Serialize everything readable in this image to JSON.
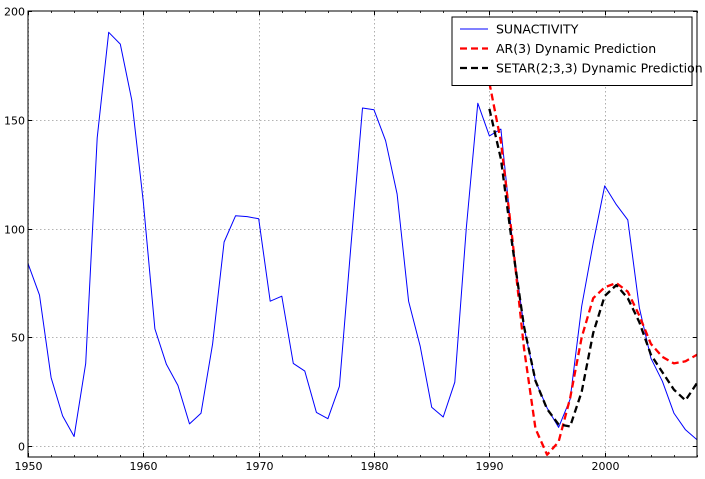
{
  "chart_data": {
    "type": "line",
    "title": "",
    "xlabel": "",
    "ylabel": "",
    "xlim": [
      1950,
      2008
    ],
    "ylim": [
      -5,
      200
    ],
    "x_ticks": [
      1950,
      1960,
      1970,
      1980,
      1990,
      2000
    ],
    "y_ticks": [
      0,
      50,
      100,
      150,
      200
    ],
    "grid": true,
    "legend_position": "top-right",
    "series": [
      {
        "name": "SUNACTIVITY",
        "color": "#0000ff",
        "style": "solid",
        "x": [
          1950,
          1951,
          1952,
          1953,
          1954,
          1955,
          1956,
          1957,
          1958,
          1959,
          1960,
          1961,
          1962,
          1963,
          1964,
          1965,
          1966,
          1967,
          1968,
          1969,
          1970,
          1971,
          1972,
          1973,
          1974,
          1975,
          1976,
          1977,
          1978,
          1979,
          1980,
          1981,
          1982,
          1983,
          1984,
          1985,
          1986,
          1987,
          1988,
          1989,
          1990,
          1991,
          1992,
          1993,
          1994,
          1995,
          1996,
          1997,
          1998,
          1999,
          2000,
          2001,
          2002,
          2003,
          2004,
          2005,
          2006,
          2007,
          2008
        ],
        "y": [
          83.9,
          69.4,
          31.5,
          13.9,
          4.4,
          38.0,
          141.7,
          190.2,
          184.8,
          159.0,
          112.3,
          53.9,
          37.6,
          27.9,
          10.2,
          15.1,
          47.0,
          93.8,
          105.9,
          105.5,
          104.5,
          66.6,
          68.9,
          38.0,
          34.5,
          15.5,
          12.6,
          27.5,
          92.5,
          155.4,
          154.6,
          140.4,
          115.9,
          66.6,
          45.9,
          17.9,
          13.4,
          29.4,
          100.2,
          157.6,
          142.6,
          145.7,
          94.3,
          54.6,
          29.9,
          17.5,
          8.6,
          21.5,
          64.3,
          93.3,
          119.6,
          111.0,
          104.0,
          63.7,
          40.4,
          29.8,
          15.2,
          7.5,
          2.9
        ]
      },
      {
        "name": "AR(3) Dynamic Prediction",
        "color": "#ff0000",
        "style": "dashed",
        "x": [
          1990,
          1991,
          1992,
          1993,
          1994,
          1995,
          1996,
          1997,
          1998,
          1999,
          2000,
          2001,
          2002,
          2003,
          2004,
          2005,
          2006,
          2007,
          2008
        ],
        "y": [
          167,
          140,
          95,
          45,
          8,
          -4,
          2,
          22,
          50,
          68,
          73,
          75,
          71,
          60,
          47,
          41,
          38,
          39,
          42
        ]
      },
      {
        "name": "SETAR(2;3,3) Dynamic Prediction",
        "color": "#000000",
        "style": "dashed",
        "x": [
          1990,
          1991,
          1992,
          1993,
          1994,
          1995,
          1996,
          1997,
          1998,
          1999,
          2000,
          2001,
          2002,
          2003,
          2004,
          2005,
          2006,
          2007,
          2008
        ],
        "y": [
          155,
          132,
          92,
          55,
          30,
          17,
          10,
          9,
          25,
          52,
          69,
          74,
          68,
          57,
          42,
          34,
          26,
          21,
          29
        ]
      }
    ]
  }
}
